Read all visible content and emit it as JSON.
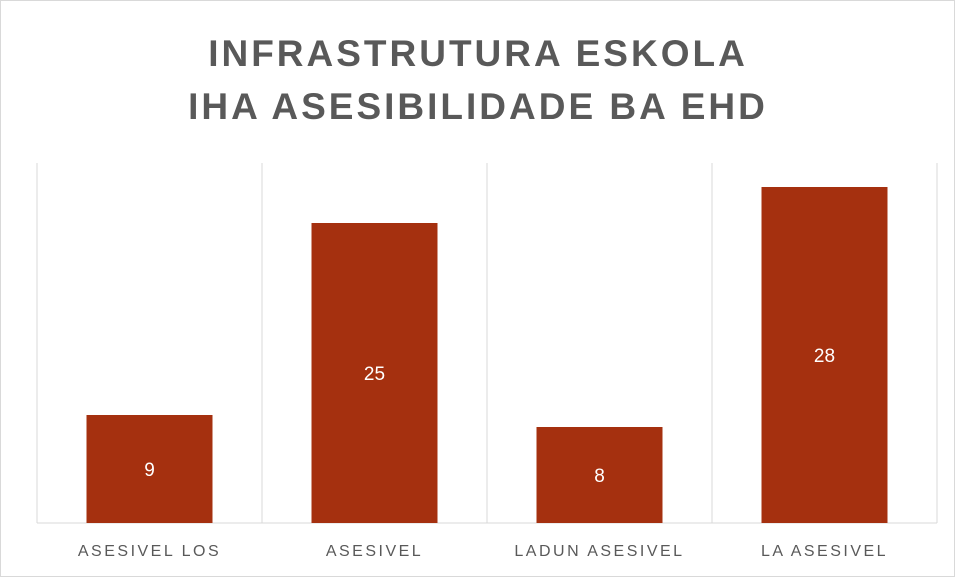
{
  "chart_data": {
    "type": "bar",
    "title": "INFRASTRUTURA ESKOLA IHA ASESIBILIDADE BA EHD",
    "categories": [
      "ASESIVEL LOS",
      "ASESIVEL",
      "LADUN ASESIVEL",
      "LA ASESIVEL"
    ],
    "values": [
      9,
      25,
      8,
      28
    ],
    "color": "#a5300f",
    "ylim": [
      0,
      30
    ]
  }
}
